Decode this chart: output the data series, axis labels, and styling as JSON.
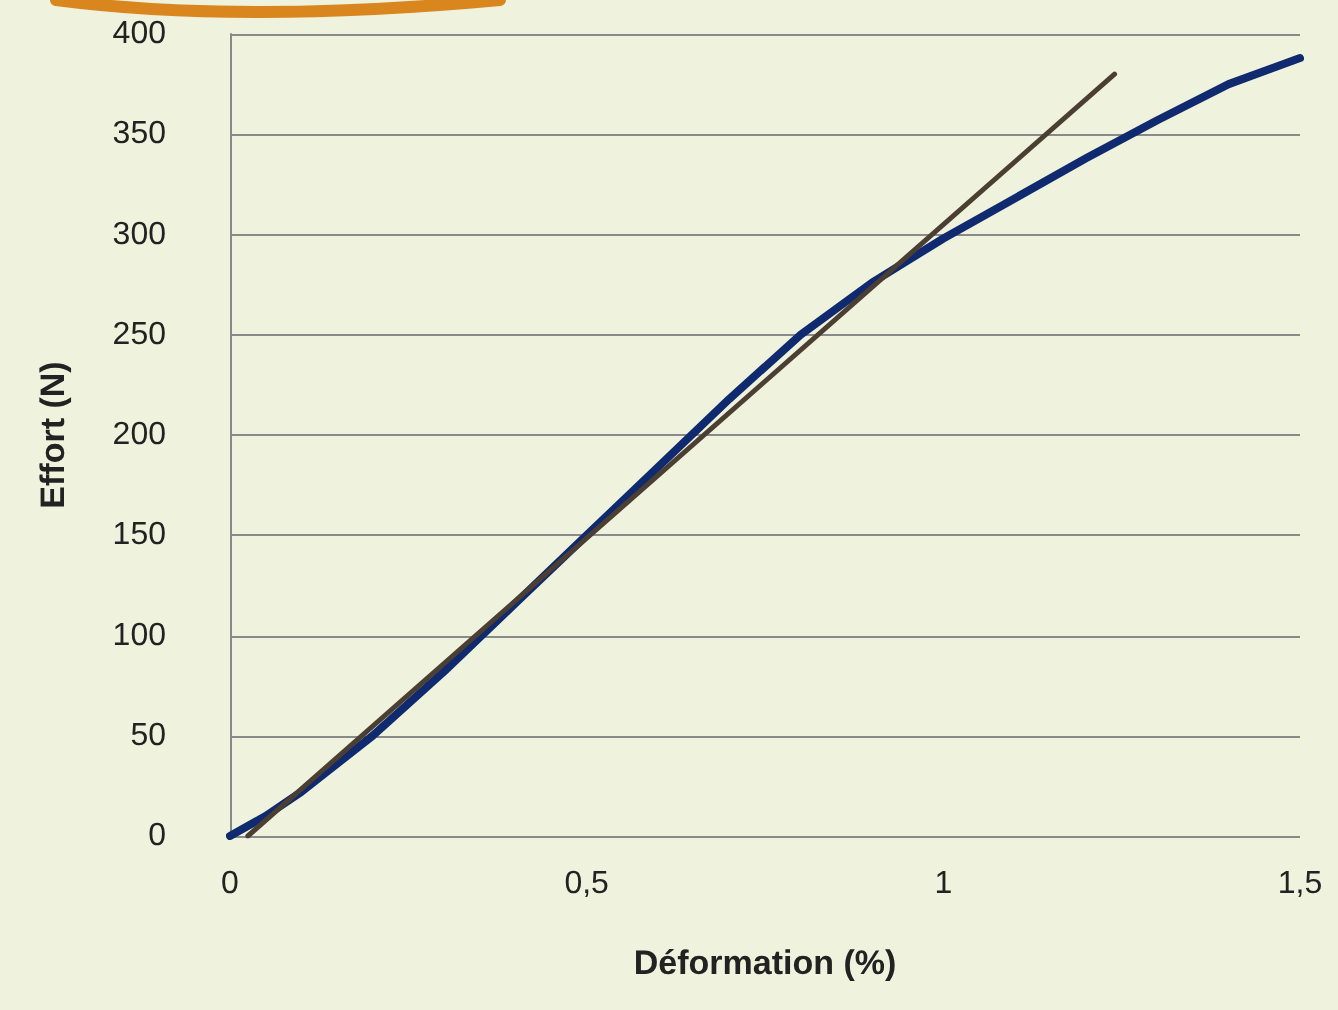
{
  "chart_data": {
    "type": "line",
    "xlabel": "Déformation (%)",
    "ylabel": "Effort (N)",
    "xlim": [
      0,
      1.5
    ],
    "xticks": [
      0,
      {
        "value": 0.5,
        "label": "0,5"
      },
      1,
      {
        "value": 1.5,
        "label": "1,5"
      }
    ],
    "ylim": [
      0,
      400
    ],
    "yticks": [
      0,
      50,
      100,
      150,
      200,
      250,
      300,
      350,
      400
    ],
    "grid": "y",
    "marker": "none",
    "line_style": "solid",
    "series": [
      {
        "color": "#0f2a6e",
        "x": [
          0,
          0.05,
          0.1,
          0.2,
          0.3,
          0.4,
          0.5,
          0.6,
          0.7,
          0.8,
          0.9,
          1.0,
          1.1,
          1.2,
          1.3,
          1.4,
          1.5
        ],
        "values": [
          0,
          10,
          22,
          50,
          82,
          116,
          150,
          184,
          218,
          250,
          276,
          298,
          318,
          338,
          357,
          375,
          388
        ]
      },
      {
        "color": "#4b3f33",
        "x": [
          0.025,
          1.24
        ],
        "values": [
          0,
          380
        ]
      }
    ]
  }
}
